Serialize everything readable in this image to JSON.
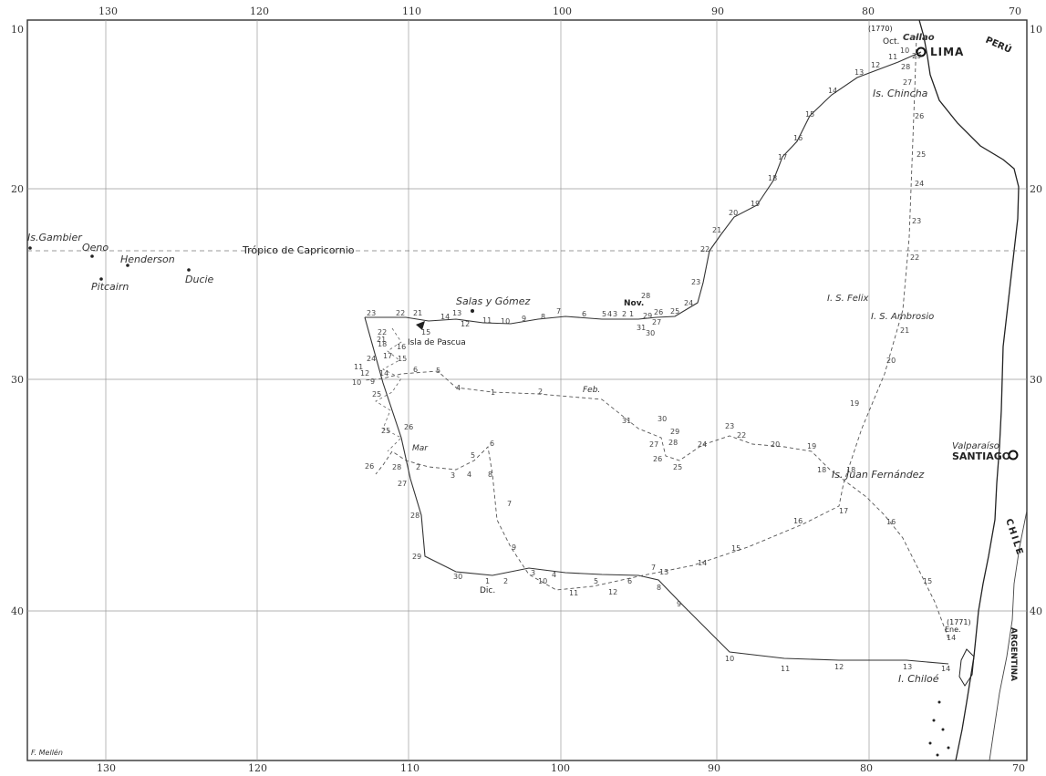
{
  "map": {
    "lon_top": [
      "130",
      "120",
      "110",
      "100",
      "90",
      "80",
      "70"
    ],
    "lon_bottom": [
      "130",
      "120",
      "110",
      "100",
      "90",
      "80",
      "70"
    ],
    "lat_left": [
      "10",
      "20",
      "30",
      "40"
    ],
    "lat_right": [
      "10",
      "20",
      "30",
      "40"
    ],
    "places": {
      "callao": "Callao",
      "lima": "LIMA",
      "peru": "PERÚ",
      "chincha": "Is. Chincha",
      "felix": "I. S. Felix",
      "ambrosio": "I. S. Ambrosio",
      "valparaiso": "Valparaíso",
      "santiago": "SANTIAGO",
      "juan_fernandez": "Is. Juan Fernández",
      "chile": "CHILE",
      "argentina": "ARGENTINA",
      "chiloe": "I. Chiloé",
      "gambier": "Is.Gambier",
      "oeno": "Oeno",
      "henderson": "Henderson",
      "pitcairn": "Pitcairn",
      "ducie": "Ducie",
      "salas": "Salas y Gómez",
      "pascua": "Isla de Pascua",
      "tropico": "Trópico de Capricornio"
    },
    "months": {
      "oct": "Oct.",
      "nov": "Nov.",
      "dic": "Dic.",
      "ene": "Ene.",
      "feb": "Feb.",
      "mar": "Mar"
    },
    "years": {
      "y1770": "(1770)",
      "y1771": "(1771)"
    },
    "signature": "F. Mellén",
    "colors": {
      "ink": "#333333",
      "coast": "#222222",
      "grid": "#9a9a9a"
    }
  }
}
